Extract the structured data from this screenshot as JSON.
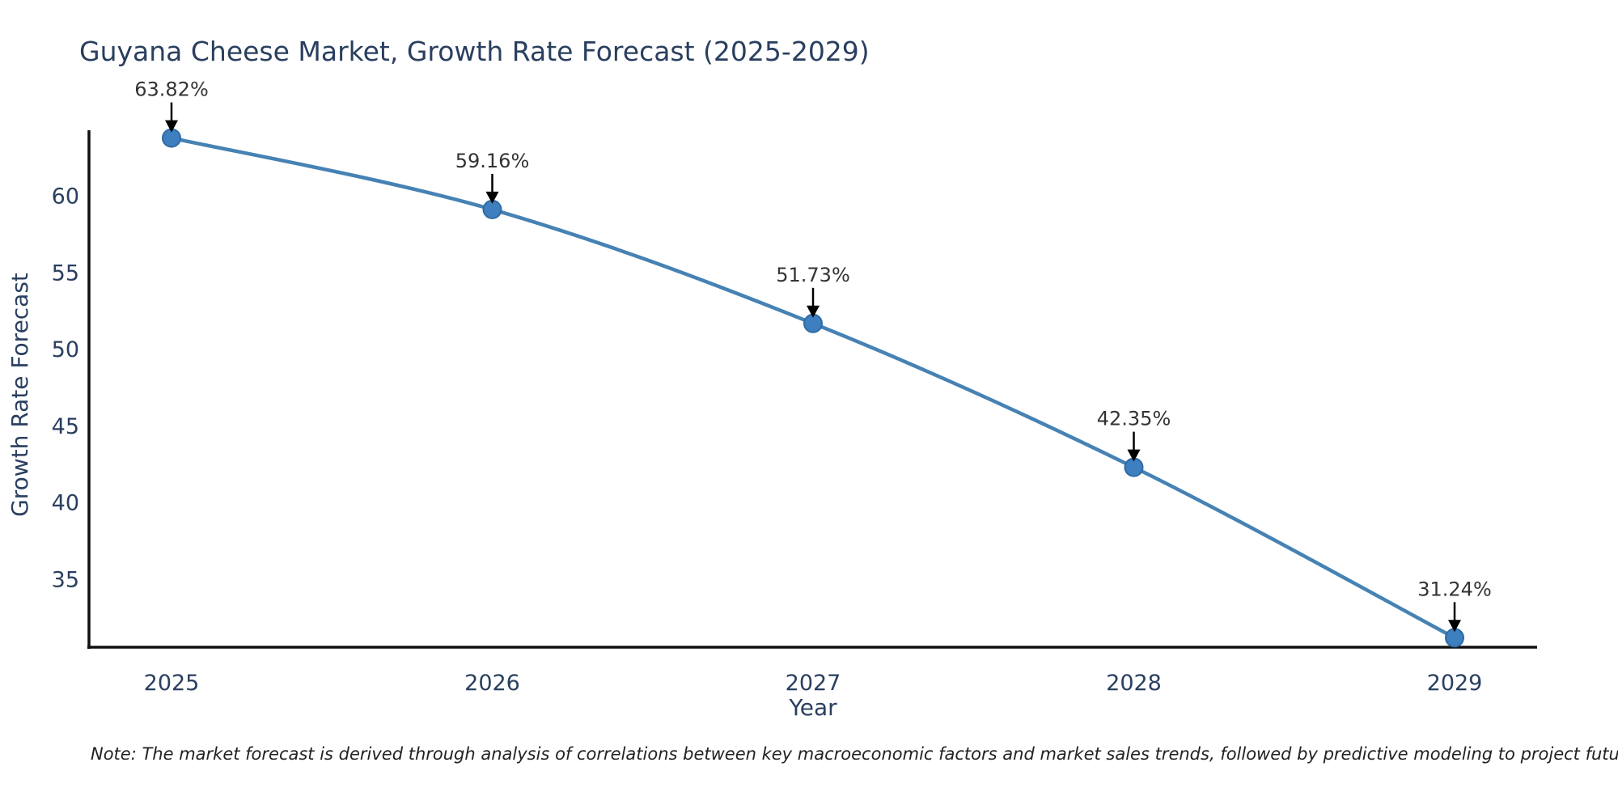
{
  "title": "Guyana Cheese Market, Growth Rate Forecast (2025-2029)",
  "note": "Note: The market forecast is derived through analysis of correlations between key macroeconomic factors and market sales trends, followed by predictive modeling to project future sales",
  "colors": {
    "title_text": "#2a3f5f",
    "axis_text": "#2a3f5f",
    "annotation_text": "#333333",
    "line": "#4682b4",
    "marker_fill": "#3d7fbf",
    "marker_edge": "#2f6ba3",
    "axis_line": "#111111",
    "arrow": "#000000",
    "background": "#ffffff"
  },
  "chart_data": {
    "type": "line",
    "title": "Guyana Cheese Market, Growth Rate Forecast (2025-2029)",
    "xlabel": "Year",
    "ylabel": "Growth Rate Forecast",
    "categories": [
      "2025",
      "2026",
      "2027",
      "2028",
      "2029"
    ],
    "series": [
      {
        "name": "Growth Rate Forecast",
        "values": [
          63.82,
          59.16,
          51.73,
          42.35,
          31.24
        ]
      }
    ],
    "point_labels": [
      "63.82%",
      "59.16%",
      "51.73%",
      "42.35%",
      "31.24%"
    ],
    "y_ticks": [
      35,
      40,
      45,
      50,
      55,
      60
    ],
    "ylim": [
      30.6,
      64.4
    ],
    "grid": false,
    "legend": false,
    "line_shape": "spline",
    "markers": true,
    "annotation_style": "value label with downward black arrow above each point"
  }
}
